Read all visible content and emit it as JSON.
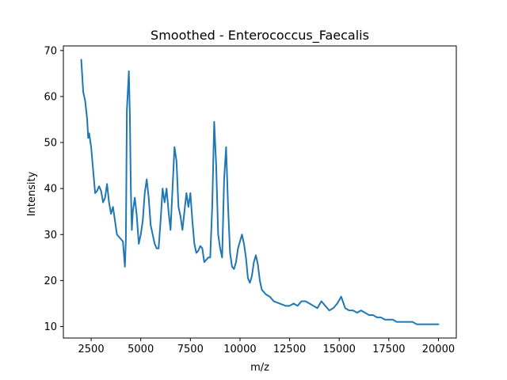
{
  "chart_data": {
    "type": "line",
    "title": "Smoothed - Enterococcus_Faecalis",
    "xlabel": "m/z",
    "ylabel": "Intensity",
    "xlim": [
      1100,
      20900
    ],
    "ylim": [
      7.5,
      71
    ],
    "xticks": [
      2500,
      5000,
      7500,
      10000,
      12500,
      15000,
      17500,
      20000
    ],
    "yticks": [
      10,
      20,
      30,
      40,
      50,
      60,
      70
    ],
    "grid": false,
    "color": "#1f77b4",
    "series": [
      {
        "x": [
          2000,
          2100,
          2200,
          2300,
          2350,
          2400,
          2500,
          2600,
          2700,
          2800,
          2900,
          3000,
          3100,
          3200,
          3300,
          3400,
          3500,
          3600,
          3700,
          3800,
          3900,
          4000,
          4100,
          4200,
          4250,
          4300,
          4400,
          4450,
          4500,
          4550,
          4600,
          4700,
          4800,
          4900,
          5000,
          5100,
          5200,
          5300,
          5400,
          5500,
          5600,
          5700,
          5800,
          5900,
          6000,
          6100,
          6200,
          6300,
          6400,
          6500,
          6600,
          6700,
          6800,
          6900,
          7000,
          7100,
          7200,
          7300,
          7400,
          7500,
          7600,
          7700,
          7800,
          7900,
          8000,
          8100,
          8200,
          8300,
          8400,
          8500,
          8600,
          8700,
          8800,
          8900,
          9000,
          9100,
          9200,
          9300,
          9400,
          9500,
          9600,
          9700,
          9800,
          9900,
          10000,
          10100,
          10200,
          10300,
          10400,
          10500,
          10600,
          10700,
          10800,
          10900,
          11000,
          11100,
          11200,
          11300,
          11500,
          11700,
          12000,
          12300,
          12500,
          12700,
          12900,
          13100,
          13300,
          13500,
          13700,
          13900,
          14100,
          14300,
          14500,
          14700,
          14900,
          15100,
          15300,
          15500,
          15700,
          15900,
          16100,
          16300,
          16500,
          16700,
          16900,
          17100,
          17300,
          17500,
          17700,
          17900,
          18100,
          18300,
          18500,
          18700,
          18900,
          19100,
          19300,
          19500,
          19700,
          19900,
          20000
        ],
        "y": [
          68,
          61,
          59,
          55,
          51,
          52,
          49,
          44,
          39,
          39.5,
          40.5,
          39.5,
          37,
          38,
          41,
          37,
          34.5,
          36,
          33,
          30,
          29.5,
          29,
          28.5,
          23,
          29,
          57,
          65.5,
          56,
          40,
          31,
          35,
          38,
          34,
          28,
          30,
          33,
          39,
          42,
          38,
          32,
          30,
          28,
          27,
          27,
          33,
          40,
          37,
          40,
          35,
          31,
          40,
          49,
          46,
          36,
          34,
          31,
          35,
          39,
          36,
          39,
          33,
          28,
          26,
          26.5,
          27.5,
          27,
          24,
          24.5,
          25,
          25,
          36,
          54.5,
          45,
          30,
          27,
          25,
          42,
          49,
          36,
          26,
          23,
          22.5,
          24,
          27,
          28.5,
          30,
          28,
          25,
          20.5,
          19.5,
          21,
          24,
          25.5,
          23.5,
          20,
          18,
          17.5,
          17,
          16.5,
          15.5,
          15,
          14.5,
          14.5,
          15,
          14.5,
          15.5,
          15.5,
          15,
          14.5,
          14,
          15.5,
          14.5,
          13.5,
          14,
          15,
          16.5,
          14,
          13.5,
          13.5,
          13,
          13.5,
          13,
          12.5,
          12.5,
          12,
          12,
          11.5,
          11.5,
          11.5,
          11,
          11,
          11,
          11,
          11,
          10.5,
          10.5,
          10.5,
          10.5,
          10.5,
          10.5,
          10.5
        ]
      }
    ]
  }
}
